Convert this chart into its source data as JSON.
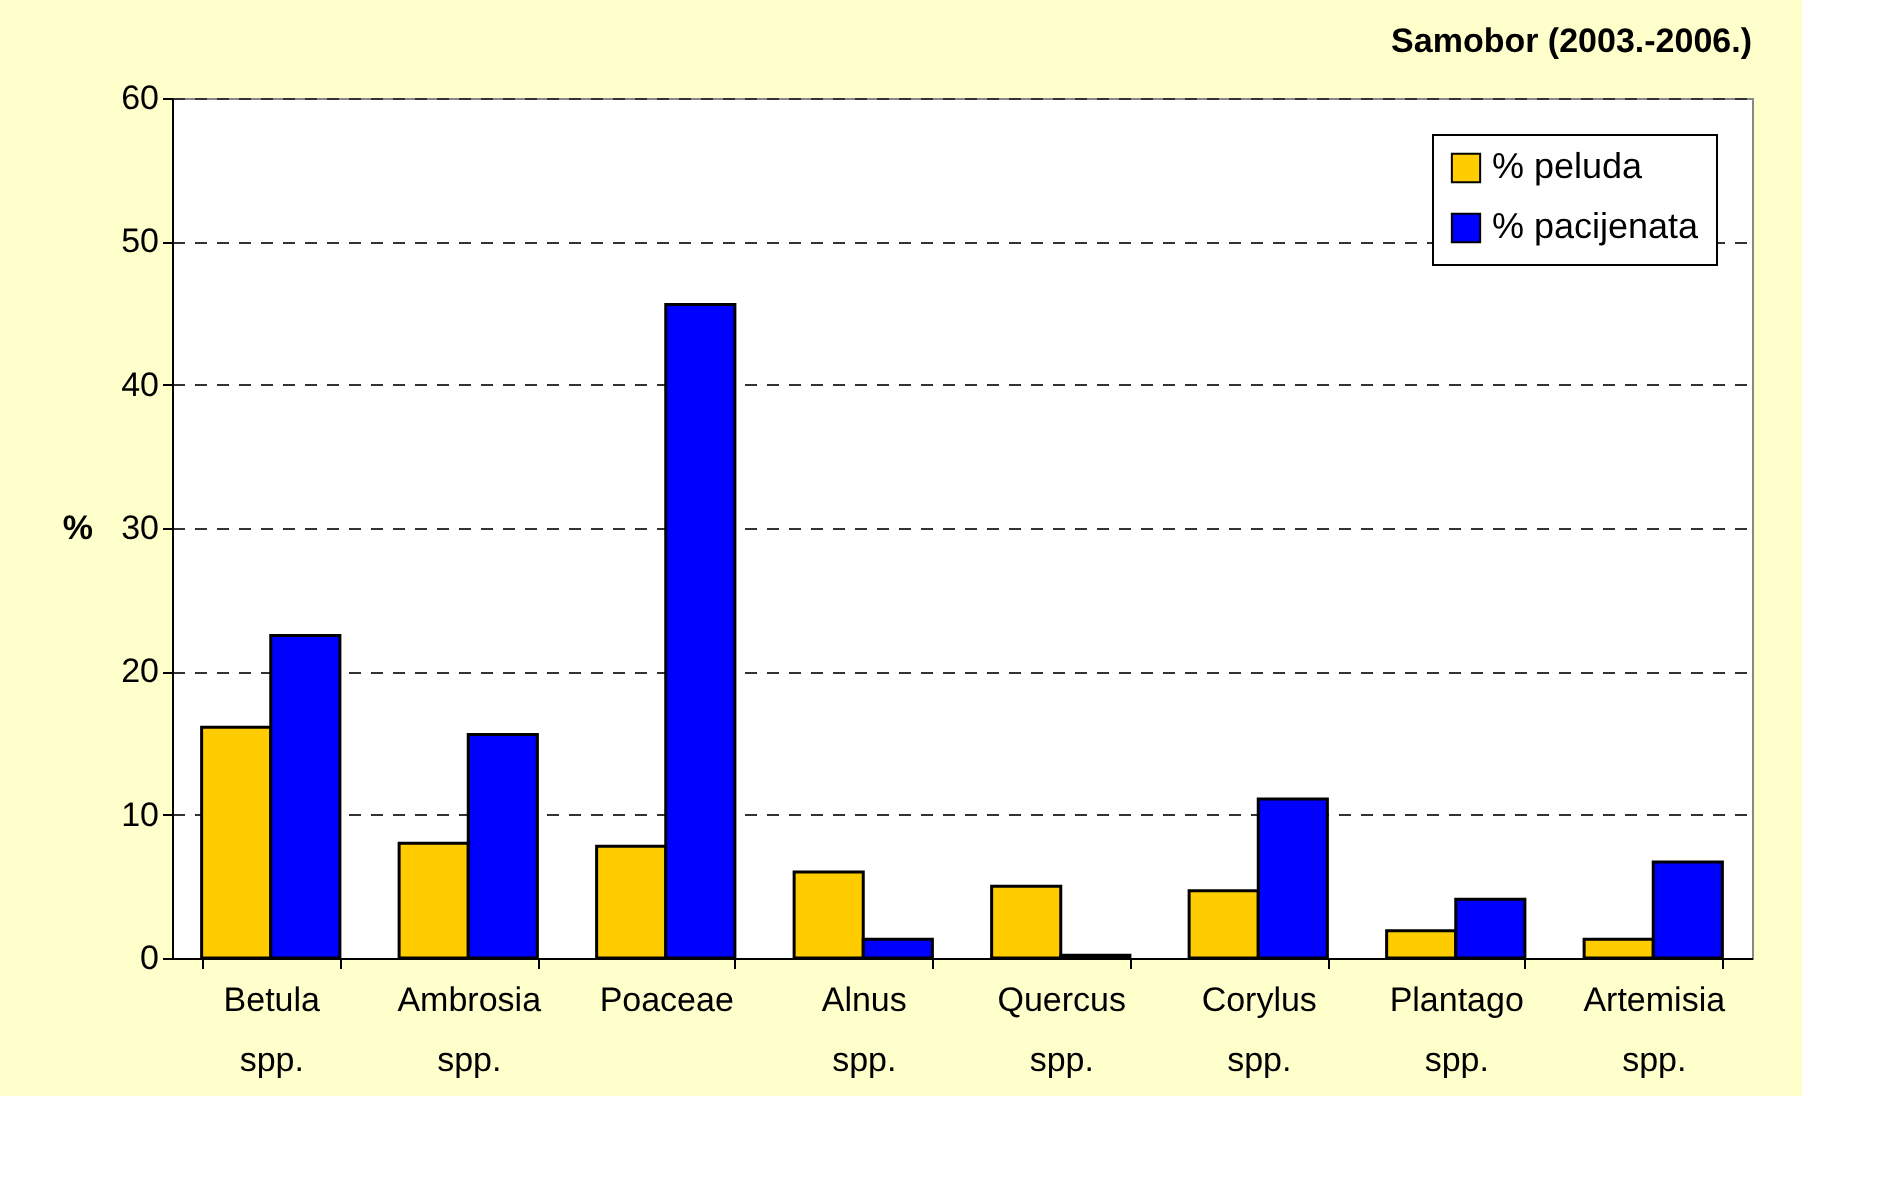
{
  "chart_data": {
    "type": "bar",
    "title": "Samobor (2003.-2006.)",
    "ylabel": "%",
    "categories": [
      "Betula\nspp.",
      "Ambrosia\nspp.",
      "Poaceae",
      "Alnus\nspp.",
      "Quercus\nspp.",
      "Corylus\nspp.",
      "Plantago\nspp.",
      "Artemisia\nspp."
    ],
    "series": [
      {
        "name": "% peluda",
        "color": "#ffcc00",
        "values": [
          16.1,
          8.0,
          7.8,
          6.0,
          5.0,
          4.7,
          1.9,
          1.3
        ]
      },
      {
        "name": "% pacijenata",
        "color": "#0000ff",
        "values": [
          22.5,
          15.6,
          45.6,
          1.3,
          0.2,
          11.1,
          4.1,
          6.7
        ]
      }
    ],
    "ylim": [
      0,
      60
    ],
    "yticks": [
      0,
      10,
      20,
      30,
      40,
      50,
      60
    ],
    "grid": "y",
    "legend": "top right"
  }
}
